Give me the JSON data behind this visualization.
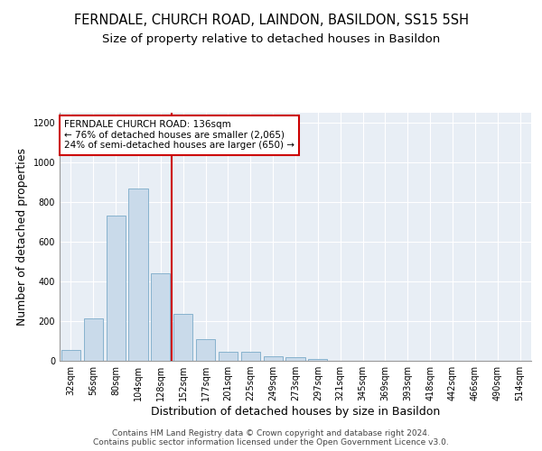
{
  "title": "FERNDALE, CHURCH ROAD, LAINDON, BASILDON, SS15 5SH",
  "subtitle": "Size of property relative to detached houses in Basildon",
  "xlabel": "Distribution of detached houses by size in Basildon",
  "ylabel": "Number of detached properties",
  "bar_labels": [
    "32sqm",
    "56sqm",
    "80sqm",
    "104sqm",
    "128sqm",
    "152sqm",
    "177sqm",
    "201sqm",
    "225sqm",
    "249sqm",
    "273sqm",
    "297sqm",
    "321sqm",
    "345sqm",
    "369sqm",
    "393sqm",
    "418sqm",
    "442sqm",
    "466sqm",
    "490sqm",
    "514sqm"
  ],
  "bar_values": [
    55,
    215,
    730,
    870,
    440,
    235,
    110,
    45,
    45,
    25,
    20,
    10,
    0,
    0,
    0,
    0,
    0,
    0,
    0,
    0,
    0
  ],
  "bar_color": "#c9daea",
  "bar_edge_color": "#7aaac8",
  "red_line_index": 4.5,
  "red_line_color": "#cc0000",
  "annotation_text": "FERNDALE CHURCH ROAD: 136sqm\n← 76% of detached houses are smaller (2,065)\n24% of semi-detached houses are larger (650) →",
  "annotation_box_color": "white",
  "annotation_box_edge_color": "#cc0000",
  "ylim": [
    0,
    1250
  ],
  "yticks": [
    0,
    200,
    400,
    600,
    800,
    1000,
    1200
  ],
  "bg_color": "#ffffff",
  "plot_bg_color": "#e8eef5",
  "footer_line1": "Contains HM Land Registry data © Crown copyright and database right 2024.",
  "footer_line2": "Contains public sector information licensed under the Open Government Licence v3.0.",
  "title_fontsize": 10.5,
  "subtitle_fontsize": 9.5,
  "axis_label_fontsize": 9,
  "tick_fontsize": 7,
  "annotation_fontsize": 7.5,
  "footer_fontsize": 6.5
}
